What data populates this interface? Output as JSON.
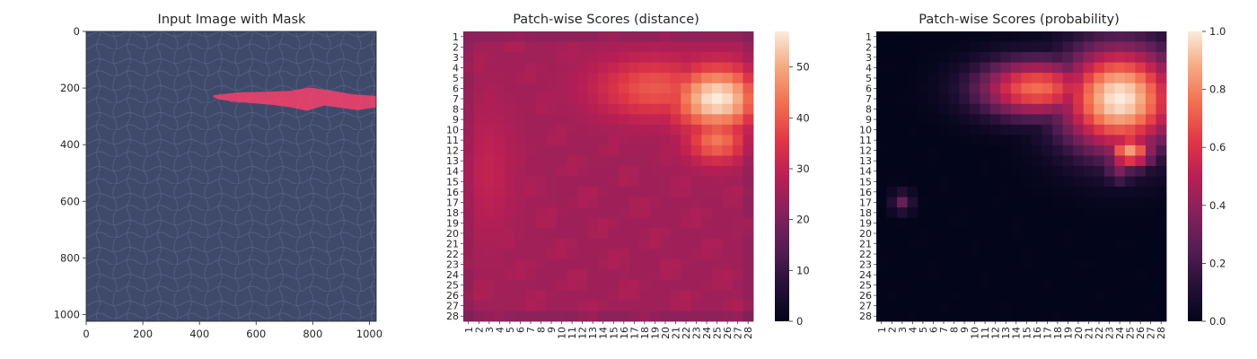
{
  "colors": {
    "background": "#ffffff",
    "leather_base": "#3f4a6a",
    "leather_highlight": "#56628a",
    "mask": "#ff3f6c",
    "text": "#262626"
  },
  "chart_data": [
    {
      "type": "image",
      "title": "Input Image with Mask",
      "xlim": [
        0,
        1024
      ],
      "ylim": [
        1024,
        0
      ],
      "x_ticks": [
        "0",
        "200",
        "400",
        "600",
        "800",
        "1000"
      ],
      "y_ticks": [
        "0",
        "200",
        "400",
        "600",
        "800",
        "1000"
      ],
      "mask_outline": [
        [
          450,
          225
        ],
        [
          540,
          215
        ],
        [
          640,
          213
        ],
        [
          720,
          210
        ],
        [
          790,
          198
        ],
        [
          860,
          208
        ],
        [
          940,
          222
        ],
        [
          1024,
          228
        ],
        [
          1024,
          268
        ],
        [
          960,
          278
        ],
        [
          900,
          270
        ],
        [
          840,
          262
        ],
        [
          780,
          280
        ],
        [
          720,
          268
        ],
        [
          660,
          260
        ],
        [
          600,
          255
        ],
        [
          520,
          248
        ],
        [
          470,
          240
        ],
        [
          448,
          232
        ]
      ]
    },
    {
      "type": "heatmap",
      "title": "Patch-wise Scores (distance)",
      "x_ticks": [
        "1",
        "2",
        "3",
        "4",
        "5",
        "6",
        "7",
        "8",
        "9",
        "10",
        "11",
        "12",
        "13",
        "14",
        "15",
        "16",
        "17",
        "18",
        "19",
        "20",
        "21",
        "22",
        "23",
        "24",
        "25",
        "26",
        "27",
        "28"
      ],
      "y_ticks": [
        "1",
        "2",
        "3",
        "4",
        "5",
        "6",
        "7",
        "8",
        "9",
        "10",
        "11",
        "12",
        "13",
        "14",
        "15",
        "16",
        "17",
        "18",
        "19",
        "20",
        "21",
        "22",
        "23",
        "24",
        "25",
        "26",
        "27",
        "28"
      ],
      "colorbar_range": [
        0,
        57
      ],
      "colorbar_ticks": [
        "0",
        "10",
        "20",
        "30",
        "40",
        "50"
      ],
      "base_value": 25,
      "hotspots": [
        {
          "row": 7,
          "col": 25,
          "peak": 57,
          "radius_x": 3.3,
          "radius_y": 2.4
        },
        {
          "row": 6,
          "col": 19,
          "peak": 40,
          "radius_x": 4.5,
          "radius_y": 2.3
        },
        {
          "row": 11,
          "col": 25,
          "peak": 44,
          "radius_x": 2.2,
          "radius_y": 1.7
        },
        {
          "row": 14,
          "col": 3,
          "peak": 30,
          "radius_x": 2,
          "radius_y": 5
        }
      ]
    },
    {
      "type": "heatmap",
      "title": "Patch-wise Scores (probability)",
      "x_ticks": [
        "1",
        "2",
        "3",
        "4",
        "5",
        "6",
        "7",
        "8",
        "9",
        "10",
        "11",
        "12",
        "13",
        "14",
        "15",
        "16",
        "17",
        "18",
        "19",
        "20",
        "21",
        "22",
        "23",
        "24",
        "25",
        "26",
        "27",
        "28"
      ],
      "y_ticks": [
        "1",
        "2",
        "3",
        "4",
        "5",
        "6",
        "7",
        "8",
        "9",
        "10",
        "11",
        "12",
        "13",
        "14",
        "15",
        "16",
        "17",
        "18",
        "19",
        "20",
        "21",
        "22",
        "23",
        "24",
        "25",
        "26",
        "27",
        "28"
      ],
      "colorbar_range": [
        0,
        1
      ],
      "colorbar_ticks": [
        "0.0",
        "0.2",
        "0.4",
        "0.6",
        "0.8",
        "1.0"
      ],
      "base_value": 0,
      "hotspots": [
        {
          "row": 7,
          "col": 24,
          "peak": 1.0,
          "radius_x": 4.5,
          "radius_y": 4.0
        },
        {
          "row": 6,
          "col": 16,
          "peak": 0.75,
          "radius_x": 4.5,
          "radius_y": 2.2
        },
        {
          "row": 12,
          "col": 25,
          "peak": 0.85,
          "radius_x": 1.8,
          "radius_y": 1.4
        },
        {
          "row": 14,
          "col": 24,
          "peak": 0.35,
          "radius_x": 1.2,
          "radius_y": 1.0
        },
        {
          "row": 17,
          "col": 3,
          "peak": 0.3,
          "radius_x": 0.8,
          "radius_y": 0.8
        }
      ]
    }
  ]
}
